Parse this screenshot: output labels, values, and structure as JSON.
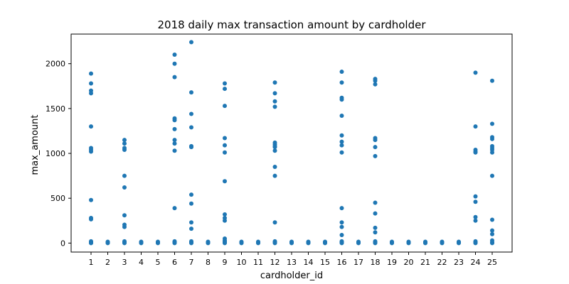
{
  "chart_data": {
    "type": "scatter",
    "title": "2018 daily max transaction amount by cardholder",
    "xlabel": "cardholder_id",
    "ylabel": "max_amount",
    "x_categories": [
      "1",
      "2",
      "3",
      "4",
      "5",
      "6",
      "7",
      "8",
      "9",
      "10",
      "11",
      "12",
      "13",
      "14",
      "15",
      "16",
      "17",
      "18",
      "19",
      "20",
      "21",
      "22",
      "23",
      "24",
      "25"
    ],
    "ylim": [
      -100,
      2330
    ],
    "yticks": [
      0,
      500,
      1000,
      1500,
      2000
    ],
    "grid": false,
    "marker_color": "#1f77b4",
    "points": [
      {
        "x": 1,
        "y": [
          1890,
          1780,
          1700,
          1670,
          1300,
          1060,
          1040,
          1020,
          480,
          280,
          265,
          20,
          12,
          6,
          2,
          0
        ]
      },
      {
        "x": 2,
        "y": [
          15,
          8,
          3,
          0
        ]
      },
      {
        "x": 3,
        "y": [
          1150,
          1110,
          1060,
          1040,
          750,
          620,
          310,
          205,
          180,
          20,
          10,
          4,
          0
        ]
      },
      {
        "x": 4,
        "y": [
          15,
          8,
          3,
          0
        ]
      },
      {
        "x": 5,
        "y": [
          15,
          8,
          3,
          0
        ]
      },
      {
        "x": 6,
        "y": [
          2100,
          2000,
          1850,
          1390,
          1370,
          1270,
          1150,
          1110,
          1030,
          390,
          20,
          10,
          4,
          0
        ]
      },
      {
        "x": 7,
        "y": [
          2240,
          1680,
          1440,
          1290,
          1080,
          1070,
          540,
          440,
          230,
          160,
          20,
          10,
          4,
          0
        ]
      },
      {
        "x": 8,
        "y": [
          15,
          8,
          3,
          0
        ]
      },
      {
        "x": 9,
        "y": [
          1780,
          1720,
          1530,
          1170,
          1090,
          1010,
          690,
          320,
          280,
          250,
          50,
          30,
          20,
          10,
          4,
          0
        ]
      },
      {
        "x": 10,
        "y": [
          15,
          8,
          3,
          0
        ]
      },
      {
        "x": 11,
        "y": [
          15,
          8,
          3,
          0
        ]
      },
      {
        "x": 12,
        "y": [
          1790,
          1670,
          1580,
          1520,
          1120,
          1100,
          1080,
          1070,
          1030,
          850,
          750,
          230,
          20,
          10,
          4,
          0
        ]
      },
      {
        "x": 13,
        "y": [
          15,
          8,
          3,
          0
        ]
      },
      {
        "x": 14,
        "y": [
          15,
          8,
          3,
          0
        ]
      },
      {
        "x": 15,
        "y": [
          15,
          8,
          3,
          0
        ]
      },
      {
        "x": 16,
        "y": [
          1910,
          1790,
          1620,
          1600,
          1420,
          1200,
          1130,
          1090,
          1010,
          390,
          230,
          180,
          90,
          20,
          10,
          4,
          0
        ]
      },
      {
        "x": 17,
        "y": [
          15,
          8,
          3,
          0
        ]
      },
      {
        "x": 18,
        "y": [
          1830,
          1810,
          1770,
          1170,
          1150,
          1070,
          970,
          450,
          330,
          170,
          120,
          20,
          10,
          4,
          0
        ]
      },
      {
        "x": 19,
        "y": [
          15,
          8,
          3,
          0
        ]
      },
      {
        "x": 20,
        "y": [
          15,
          8,
          3,
          0
        ]
      },
      {
        "x": 21,
        "y": [
          15,
          8,
          3,
          0
        ]
      },
      {
        "x": 22,
        "y": [
          15,
          8,
          3,
          0
        ]
      },
      {
        "x": 23,
        "y": [
          15,
          8,
          3,
          0
        ]
      },
      {
        "x": 24,
        "y": [
          1900,
          1300,
          1040,
          1020,
          1010,
          520,
          460,
          290,
          250,
          20,
          10,
          4,
          0
        ]
      },
      {
        "x": 25,
        "y": [
          1810,
          1330,
          1180,
          1160,
          1080,
          1060,
          1040,
          1010,
          750,
          260,
          140,
          100,
          30,
          10,
          4,
          0
        ]
      }
    ]
  }
}
